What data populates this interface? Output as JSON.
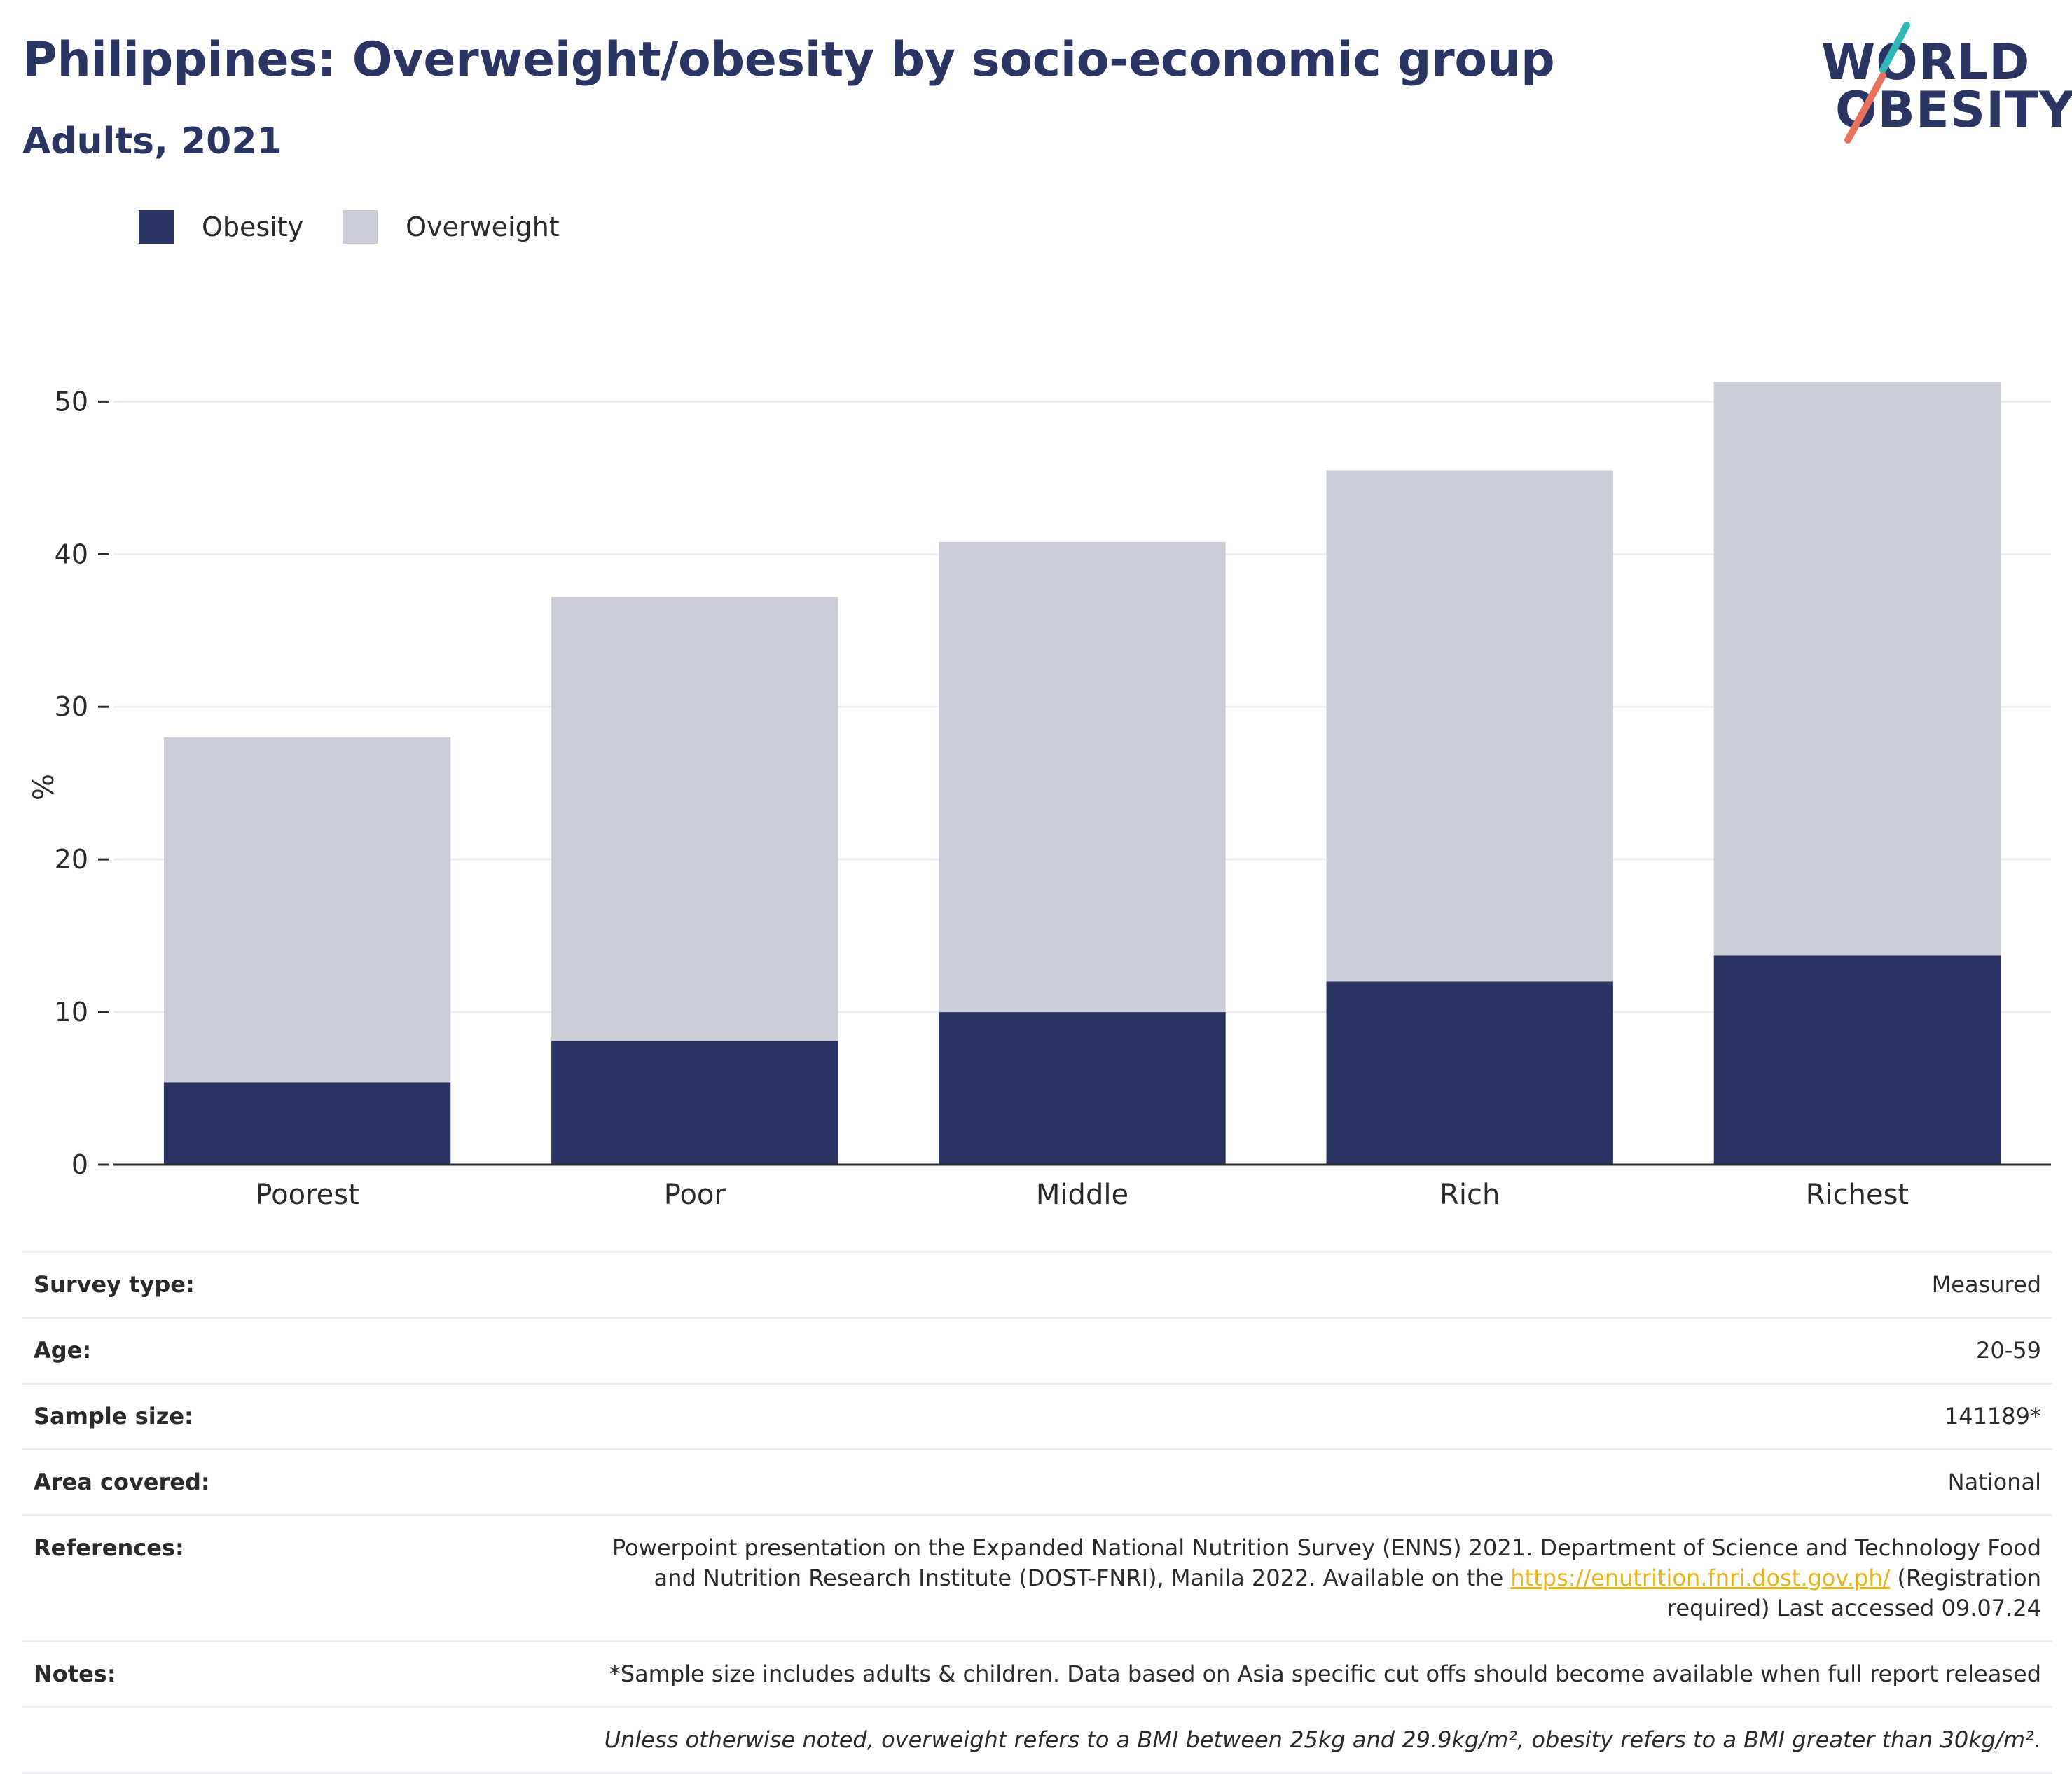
{
  "header": {
    "title": "Philippines: Overweight/obesity by socio-economic group",
    "subtitle": "Adults, 2021"
  },
  "logo": {
    "line1": "WORLD",
    "line2": "OBESITY",
    "colors": {
      "text": "#2a3564",
      "accent_teal": "#2fb8b5",
      "accent_coral": "#e8705e"
    }
  },
  "colors": {
    "obesity": "#2a3564",
    "overweight": "#cbcdd8",
    "grid": "#eceef3",
    "axis": "#2a2a2a",
    "link": "#e8b21a"
  },
  "legend": {
    "items": [
      {
        "label": "Obesity",
        "color": "#2a3564"
      },
      {
        "label": "Overweight",
        "color": "#cbcdd8"
      }
    ]
  },
  "chart_data": {
    "type": "bar",
    "stacked": true,
    "categories": [
      "Poorest",
      "Poor",
      "Middle",
      "Rich",
      "Richest"
    ],
    "series": [
      {
        "name": "Obesity",
        "values": [
          5.4,
          8.1,
          10.0,
          12.0,
          13.7
        ]
      },
      {
        "name": "Overweight",
        "values": [
          22.6,
          29.1,
          30.8,
          33.5,
          37.6
        ]
      }
    ],
    "ylabel": "%",
    "ylim": [
      0,
      51.3
    ],
    "yticks": [
      0,
      10,
      20,
      30,
      40,
      50
    ],
    "grid": true,
    "legend_position": "top-left"
  },
  "info": {
    "survey_type": {
      "label": "Survey type:",
      "value": "Measured"
    },
    "age": {
      "label": "Age:",
      "value": "20-59"
    },
    "sample_size": {
      "label": "Sample size:",
      "value": "141189*"
    },
    "area_covered": {
      "label": "Area covered:",
      "value": "National"
    },
    "references": {
      "label": "References:",
      "text_before": "Powerpoint presentation on the Expanded National Nutrition Survey (ENNS) 2021. Department of Science and Technology Food and Nutrition Research Institute (DOST-FNRI), Manila 2022. Available on the ",
      "link": "https://enutrition.fnri.dost.gov.ph/",
      "text_after": " (Registration required) Last accessed 09.07.24"
    },
    "notes": {
      "label": "Notes:",
      "value": "*Sample size includes adults & children. Data based on Asia specific cut offs should become available when full report released"
    },
    "definition": "Unless otherwise noted, overweight refers to a BMI between 25kg and 29.9kg/m², obesity refers to a BMI greater than 30kg/m²."
  }
}
